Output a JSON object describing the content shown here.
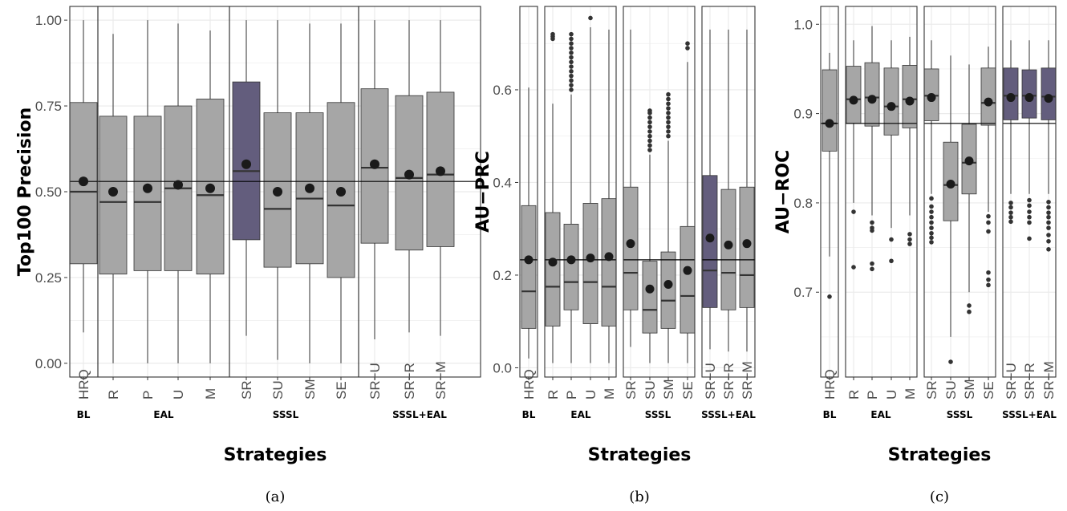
{
  "colors": {
    "box_fill": "#a6a6a6",
    "box_highlight": "#635d7d",
    "grid": "#ebebeb",
    "panel_border": "#333333",
    "mean_point": "#1a1a1a",
    "outlier": "#333333"
  },
  "x_axis_label": "Strategies",
  "chart_data": [
    {
      "type": "box",
      "caption": "(a)",
      "ylabel": "Top100 Precision",
      "ylim": [
        -0.04,
        1.04
      ],
      "yticks": [
        0.0,
        0.25,
        0.5,
        0.75,
        1.0
      ],
      "ytick_labels": [
        "0.00",
        "0.25",
        "0.50",
        "0.75",
        "1.00"
      ],
      "reference_line": 0.53,
      "groups": [
        {
          "name": "BL",
          "strategies": [
            {
              "label": "HRQ",
              "highlight": false,
              "whisker_low": 0.09,
              "q1": 0.29,
              "median": 0.5,
              "q3": 0.76,
              "whisker_high": 1.0,
              "mean": 0.53,
              "outliers": []
            }
          ]
        },
        {
          "name": "EAL",
          "strategies": [
            {
              "label": "R",
              "highlight": false,
              "whisker_low": 0.0,
              "q1": 0.26,
              "median": 0.47,
              "q3": 0.72,
              "whisker_high": 0.96,
              "mean": 0.5,
              "outliers": []
            },
            {
              "label": "P",
              "highlight": false,
              "whisker_low": 0.0,
              "q1": 0.27,
              "median": 0.47,
              "q3": 0.72,
              "whisker_high": 1.0,
              "mean": 0.51,
              "outliers": []
            },
            {
              "label": "U",
              "highlight": false,
              "whisker_low": 0.0,
              "q1": 0.27,
              "median": 0.51,
              "q3": 0.75,
              "whisker_high": 0.99,
              "mean": 0.52,
              "outliers": []
            },
            {
              "label": "M",
              "highlight": false,
              "whisker_low": 0.0,
              "q1": 0.26,
              "median": 0.49,
              "q3": 0.77,
              "whisker_high": 0.97,
              "mean": 0.51,
              "outliers": []
            }
          ]
        },
        {
          "name": "SSSL",
          "strategies": [
            {
              "label": "SR",
              "highlight": true,
              "whisker_low": 0.08,
              "q1": 0.36,
              "median": 0.56,
              "q3": 0.82,
              "whisker_high": 1.0,
              "mean": 0.58,
              "outliers": []
            },
            {
              "label": "SU",
              "highlight": false,
              "whisker_low": 0.01,
              "q1": 0.28,
              "median": 0.45,
              "q3": 0.73,
              "whisker_high": 1.0,
              "mean": 0.5,
              "outliers": []
            },
            {
              "label": "SM",
              "highlight": false,
              "whisker_low": 0.0,
              "q1": 0.29,
              "median": 0.48,
              "q3": 0.73,
              "whisker_high": 0.99,
              "mean": 0.51,
              "outliers": []
            },
            {
              "label": "SE",
              "highlight": false,
              "whisker_low": 0.0,
              "q1": 0.25,
              "median": 0.46,
              "q3": 0.76,
              "whisker_high": 0.99,
              "mean": 0.5,
              "outliers": []
            }
          ]
        },
        {
          "name": "SSSL+EAL",
          "strategies": [
            {
              "label": "SR−U",
              "highlight": false,
              "whisker_low": 0.07,
              "q1": 0.35,
              "median": 0.57,
              "q3": 0.8,
              "whisker_high": 1.0,
              "mean": 0.58,
              "outliers": []
            },
            {
              "label": "SR−R",
              "highlight": false,
              "whisker_low": 0.09,
              "q1": 0.33,
              "median": 0.54,
              "q3": 0.78,
              "whisker_high": 1.0,
              "mean": 0.55,
              "outliers": []
            },
            {
              "label": "SR−M",
              "highlight": false,
              "whisker_low": 0.08,
              "q1": 0.34,
              "median": 0.55,
              "q3": 0.79,
              "whisker_high": 1.0,
              "mean": 0.56,
              "outliers": []
            }
          ]
        }
      ]
    },
    {
      "type": "box",
      "caption": "(b)",
      "ylabel": "AU−PRC",
      "ylim": [
        -0.02,
        0.78
      ],
      "yticks": [
        0.0,
        0.2,
        0.4,
        0.6
      ],
      "ytick_labels": [
        "0.0",
        "0.2",
        "0.4",
        "0.6"
      ],
      "reference_line": 0.233,
      "groups": [
        {
          "name": "BL",
          "strategies": [
            {
              "label": "HRQ",
              "highlight": false,
              "whisker_low": 0.02,
              "q1": 0.085,
              "median": 0.165,
              "q3": 0.35,
              "whisker_high": 0.605,
              "mean": 0.233,
              "outliers": []
            }
          ]
        },
        {
          "name": "EAL",
          "strategies": [
            {
              "label": "R",
              "highlight": false,
              "whisker_low": 0.01,
              "q1": 0.09,
              "median": 0.175,
              "q3": 0.335,
              "whisker_high": 0.57,
              "mean": 0.228,
              "outliers": [
                0.71,
                0.715,
                0.72
              ]
            },
            {
              "label": "P",
              "highlight": false,
              "whisker_low": 0.01,
              "q1": 0.125,
              "median": 0.185,
              "q3": 0.31,
              "whisker_high": 0.59,
              "mean": 0.233,
              "outliers": [
                0.6,
                0.61,
                0.62,
                0.63,
                0.64,
                0.65,
                0.66,
                0.67,
                0.68,
                0.69,
                0.7,
                0.71,
                0.72
              ]
            },
            {
              "label": "U",
              "highlight": false,
              "whisker_low": 0.01,
              "q1": 0.095,
              "median": 0.185,
              "q3": 0.355,
              "whisker_high": 0.735,
              "mean": 0.237,
              "outliers": [
                0.755
              ]
            },
            {
              "label": "M",
              "highlight": false,
              "whisker_low": 0.01,
              "q1": 0.09,
              "median": 0.175,
              "q3": 0.365,
              "whisker_high": 0.73,
              "mean": 0.24,
              "outliers": []
            }
          ]
        },
        {
          "name": "SSSL",
          "strategies": [
            {
              "label": "SR",
              "highlight": false,
              "whisker_low": 0.045,
              "q1": 0.125,
              "median": 0.205,
              "q3": 0.39,
              "whisker_high": 0.73,
              "mean": 0.268,
              "outliers": []
            },
            {
              "label": "SU",
              "highlight": false,
              "whisker_low": 0.01,
              "q1": 0.075,
              "median": 0.125,
              "q3": 0.23,
              "whisker_high": 0.46,
              "mean": 0.17,
              "outliers": [
                0.47,
                0.48,
                0.49,
                0.5,
                0.51,
                0.52,
                0.53,
                0.54,
                0.55,
                0.555
              ]
            },
            {
              "label": "SM",
              "highlight": false,
              "whisker_low": 0.01,
              "q1": 0.085,
              "median": 0.145,
              "q3": 0.25,
              "whisker_high": 0.49,
              "mean": 0.18,
              "outliers": [
                0.5,
                0.51,
                0.52,
                0.53,
                0.54,
                0.55,
                0.56,
                0.57,
                0.58,
                0.59
              ]
            },
            {
              "label": "SE",
              "highlight": false,
              "whisker_low": 0.01,
              "q1": 0.075,
              "median": 0.155,
              "q3": 0.305,
              "whisker_high": 0.66,
              "mean": 0.21,
              "outliers": [
                0.69,
                0.7
              ]
            }
          ]
        },
        {
          "name": "SSSL+EAL",
          "strategies": [
            {
              "label": "SR−U",
              "highlight": true,
              "whisker_low": 0.04,
              "q1": 0.13,
              "median": 0.21,
              "q3": 0.415,
              "whisker_high": 0.73,
              "mean": 0.28,
              "outliers": []
            },
            {
              "label": "SR−R",
              "highlight": false,
              "whisker_low": 0.035,
              "q1": 0.125,
              "median": 0.205,
              "q3": 0.385,
              "whisker_high": 0.73,
              "mean": 0.265,
              "outliers": []
            },
            {
              "label": "SR−M",
              "highlight": false,
              "whisker_low": 0.035,
              "q1": 0.13,
              "median": 0.2,
              "q3": 0.39,
              "whisker_high": 0.73,
              "mean": 0.268,
              "outliers": []
            }
          ]
        }
      ]
    },
    {
      "type": "box",
      "caption": "(c)",
      "ylabel": "AU−ROC",
      "ylim": [
        0.605,
        1.02
      ],
      "yticks": [
        0.7,
        0.8,
        0.9,
        1.0
      ],
      "ytick_labels": [
        "0.7",
        "0.8",
        "0.9",
        "1.0"
      ],
      "reference_line": 0.889,
      "groups": [
        {
          "name": "BL",
          "strategies": [
            {
              "label": "HRQ",
              "highlight": false,
              "whisker_low": 0.74,
              "q1": 0.858,
              "median": 0.889,
              "q3": 0.949,
              "whisker_high": 0.968,
              "mean": 0.889,
              "outliers": [
                0.695
              ]
            }
          ]
        },
        {
          "name": "EAL",
          "strategies": [
            {
              "label": "R",
              "highlight": false,
              "whisker_low": 0.8,
              "q1": 0.889,
              "median": 0.916,
              "q3": 0.953,
              "whisker_high": 0.982,
              "mean": 0.915,
              "outliers": [
                0.79,
                0.728
              ]
            },
            {
              "label": "P",
              "highlight": false,
              "whisker_low": 0.786,
              "q1": 0.886,
              "median": 0.918,
              "q3": 0.957,
              "whisker_high": 0.998,
              "mean": 0.916,
              "outliers": [
                0.778,
                0.772,
                0.769,
                0.732,
                0.726
              ]
            },
            {
              "label": "U",
              "highlight": false,
              "whisker_low": 0.772,
              "q1": 0.876,
              "median": 0.908,
              "q3": 0.951,
              "whisker_high": 0.982,
              "mean": 0.908,
              "outliers": [
                0.759,
                0.735
              ]
            },
            {
              "label": "M",
              "highlight": false,
              "whisker_low": 0.786,
              "q1": 0.884,
              "median": 0.916,
              "q3": 0.954,
              "whisker_high": 0.986,
              "mean": 0.914,
              "outliers": [
                0.765,
                0.759,
                0.754
              ]
            }
          ]
        },
        {
          "name": "SSSL",
          "strategies": [
            {
              "label": "SR",
              "highlight": false,
              "whisker_low": 0.81,
              "q1": 0.892,
              "median": 0.92,
              "q3": 0.95,
              "whisker_high": 0.982,
              "mean": 0.918,
              "outliers": [
                0.805,
                0.796,
                0.79,
                0.784,
                0.778,
                0.772,
                0.766,
                0.761,
                0.756
              ]
            },
            {
              "label": "SU",
              "highlight": false,
              "whisker_low": 0.65,
              "q1": 0.78,
              "median": 0.82,
              "q3": 0.868,
              "whisker_high": 0.965,
              "mean": 0.821,
              "outliers": [
                0.622
              ]
            },
            {
              "label": "SM",
              "highlight": false,
              "whisker_low": 0.7,
              "q1": 0.81,
              "median": 0.845,
              "q3": 0.888,
              "whisker_high": 0.955,
              "mean": 0.847,
              "outliers": [
                0.685,
                0.678
              ]
            },
            {
              "label": "SE",
              "highlight": false,
              "whisker_low": 0.79,
              "q1": 0.887,
              "median": 0.912,
              "q3": 0.951,
              "whisker_high": 0.975,
              "mean": 0.913,
              "outliers": [
                0.785,
                0.778,
                0.768,
                0.722,
                0.714,
                0.708
              ]
            }
          ]
        },
        {
          "name": "SSSL+EAL",
          "strategies": [
            {
              "label": "SR−U",
              "highlight": true,
              "whisker_low": 0.81,
              "q1": 0.893,
              "median": 0.92,
              "q3": 0.951,
              "whisker_high": 0.982,
              "mean": 0.918,
              "outliers": [
                0.8,
                0.795,
                0.789,
                0.784,
                0.779
              ]
            },
            {
              "label": "SR−R",
              "highlight": true,
              "whisker_low": 0.81,
              "q1": 0.895,
              "median": 0.92,
              "q3": 0.949,
              "whisker_high": 0.982,
              "mean": 0.918,
              "outliers": [
                0.803,
                0.797,
                0.79,
                0.784,
                0.778,
                0.76
              ]
            },
            {
              "label": "SR−M",
              "highlight": true,
              "whisker_low": 0.81,
              "q1": 0.893,
              "median": 0.919,
              "q3": 0.951,
              "whisker_high": 0.982,
              "mean": 0.917,
              "outliers": [
                0.801,
                0.795,
                0.789,
                0.784,
                0.778,
                0.772,
                0.764,
                0.757,
                0.748
              ]
            }
          ]
        }
      ]
    }
  ]
}
